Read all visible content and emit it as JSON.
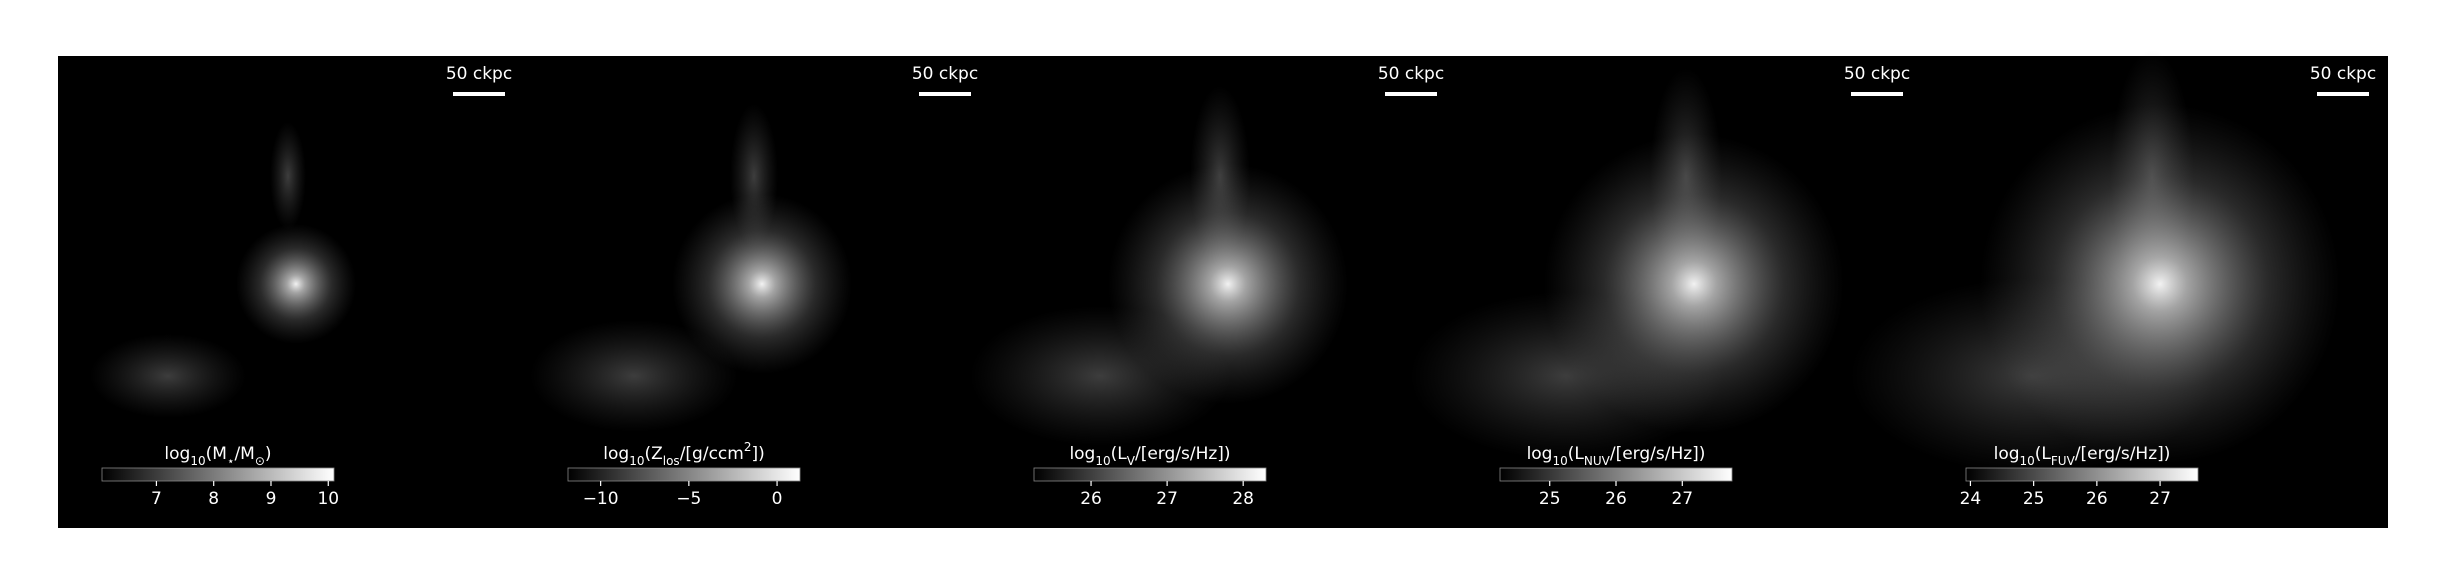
{
  "chart_data": [
    {
      "type": "image",
      "scale_bar": "50 ckpc",
      "colorbar": {
        "label": [
          "log",
          {
            "sub": "10"
          },
          "(M",
          {
            "sub": "⋆"
          },
          "/M",
          {
            "sub": "⊙"
          },
          ")"
        ],
        "xlim": [
          6.05,
          10.1
        ],
        "xticks": [
          7,
          8,
          9,
          10
        ]
      }
    },
    {
      "type": "image",
      "scale_bar": "50 ckpc",
      "colorbar": {
        "label": [
          "log",
          {
            "sub": "10"
          },
          "(Z",
          {
            "sub": "los"
          },
          "/[g/ccm",
          {
            "sup": "2"
          },
          "])"
        ],
        "xlim": [
          -11.85,
          1.3
        ],
        "xticks": [
          {
            "value": -10,
            "label": "−10"
          },
          {
            "value": -5,
            "label": "−5"
          },
          0
        ]
      }
    },
    {
      "type": "image",
      "scale_bar": "50 ckpc",
      "colorbar": {
        "label": [
          "log",
          {
            "sub": "10"
          },
          "(L",
          {
            "sub": "V"
          },
          "/[erg/s/Hz])"
        ],
        "xlim": [
          25.25,
          28.3
        ],
        "xticks": [
          26,
          27,
          28
        ]
      }
    },
    {
      "type": "image",
      "scale_bar": "50 ckpc",
      "colorbar": {
        "label": [
          "log",
          {
            "sub": "10"
          },
          "(L",
          {
            "sub": "NUV"
          },
          "/[erg/s/Hz])"
        ],
        "xlim": [
          24.25,
          27.75
        ],
        "xticks": [
          25,
          26,
          27
        ]
      }
    },
    {
      "type": "image",
      "scale_bar": "50 ckpc",
      "colorbar": {
        "label": [
          "log",
          {
            "sub": "10"
          },
          "(L",
          {
            "sub": "FUV"
          },
          "/[erg/s/Hz])"
        ],
        "xlim": [
          23.93,
          27.6
        ],
        "xticks": [
          24,
          25,
          26,
          27
        ]
      }
    }
  ]
}
